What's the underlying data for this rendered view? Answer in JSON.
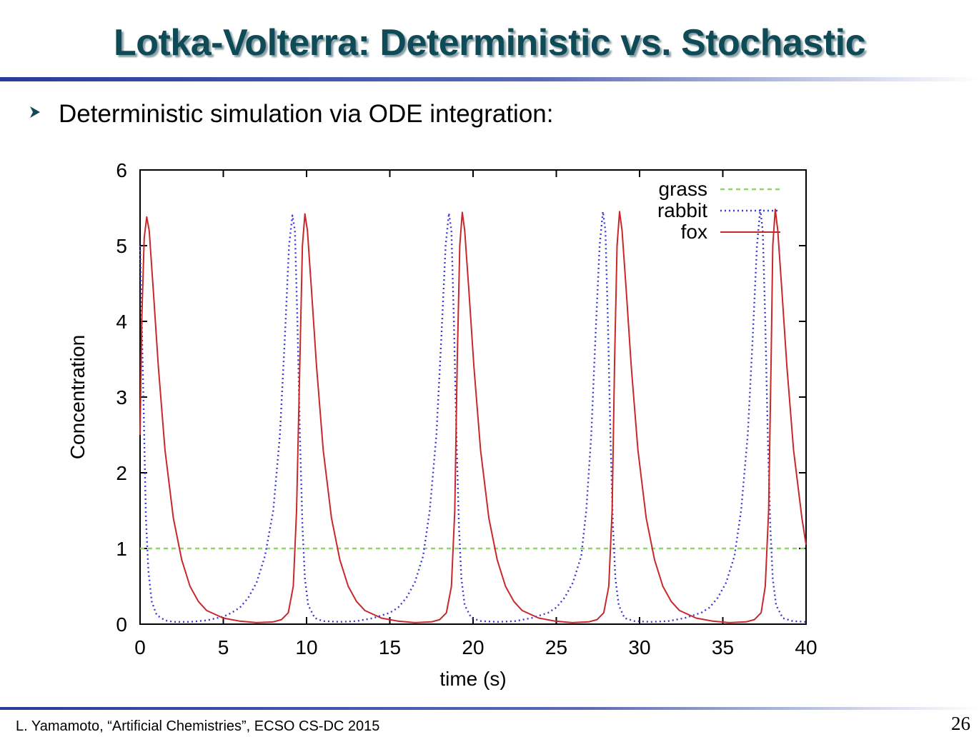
{
  "slide": {
    "title": "Lotka-Volterra: Deterministic vs. Stochastic",
    "bullet_icon": "chevron-right-icon",
    "bullet": "Deterministic simulation via ODE integration:",
    "footer": "L. Yamamoto, “Artificial Chemistries”, ECSO CS-DC 2015",
    "page_number": "26"
  },
  "chart_data": {
    "type": "line",
    "xlabel": "time (s)",
    "ylabel": "Concentration",
    "xlim": [
      0,
      40
    ],
    "ylim": [
      0,
      6
    ],
    "xticks": [
      "0",
      "5",
      "10",
      "15",
      "20",
      "25",
      "30",
      "35",
      "40"
    ],
    "yticks": [
      "0",
      "1",
      "2",
      "3",
      "4",
      "5",
      "6"
    ],
    "legend_position": "top-right",
    "grid": false,
    "series": [
      {
        "name": "grass",
        "style": "dashed",
        "color": "#8fd66a",
        "points": [
          [
            0,
            1.0
          ],
          [
            40,
            1.0
          ]
        ]
      },
      {
        "name": "rabbit",
        "style": "dotted",
        "color": "#3a3ad6",
        "points": [
          [
            0.0,
            5.0
          ],
          [
            0.2,
            3.0
          ],
          [
            0.35,
            1.4
          ],
          [
            0.5,
            0.7
          ],
          [
            0.7,
            0.3
          ],
          [
            1.0,
            0.12
          ],
          [
            1.5,
            0.05
          ],
          [
            2.0,
            0.03
          ],
          [
            3.0,
            0.03
          ],
          [
            4.0,
            0.05
          ],
          [
            5.0,
            0.1
          ],
          [
            5.5,
            0.15
          ],
          [
            6.0,
            0.22
          ],
          [
            6.5,
            0.35
          ],
          [
            7.0,
            0.55
          ],
          [
            7.5,
            0.9
          ],
          [
            8.0,
            1.5
          ],
          [
            8.4,
            2.5
          ],
          [
            8.7,
            3.8
          ],
          [
            8.95,
            5.0
          ],
          [
            9.15,
            5.4
          ],
          [
            9.3,
            5.2
          ],
          [
            9.45,
            4.0
          ],
          [
            9.6,
            2.5
          ],
          [
            9.75,
            1.3
          ],
          [
            9.9,
            0.6
          ],
          [
            10.1,
            0.25
          ],
          [
            10.5,
            0.08
          ],
          [
            11.0,
            0.04
          ],
          [
            12.0,
            0.03
          ],
          [
            13.0,
            0.04
          ],
          [
            14.0,
            0.08
          ],
          [
            15.0,
            0.15
          ],
          [
            15.5,
            0.22
          ],
          [
            16.0,
            0.35
          ],
          [
            16.5,
            0.55
          ],
          [
            17.0,
            0.9
          ],
          [
            17.4,
            1.5
          ],
          [
            17.8,
            2.5
          ],
          [
            18.1,
            3.8
          ],
          [
            18.35,
            5.0
          ],
          [
            18.55,
            5.43
          ],
          [
            18.7,
            5.2
          ],
          [
            18.85,
            4.0
          ],
          [
            19.0,
            2.5
          ],
          [
            19.15,
            1.3
          ],
          [
            19.3,
            0.6
          ],
          [
            19.5,
            0.25
          ],
          [
            19.9,
            0.08
          ],
          [
            20.5,
            0.04
          ],
          [
            21.5,
            0.03
          ],
          [
            22.5,
            0.04
          ],
          [
            23.5,
            0.08
          ],
          [
            24.5,
            0.15
          ],
          [
            25.0,
            0.22
          ],
          [
            25.5,
            0.35
          ],
          [
            26.0,
            0.55
          ],
          [
            26.5,
            0.9
          ],
          [
            26.8,
            1.5
          ],
          [
            27.1,
            2.5
          ],
          [
            27.35,
            3.8
          ],
          [
            27.6,
            5.0
          ],
          [
            27.8,
            5.45
          ],
          [
            27.95,
            5.2
          ],
          [
            28.1,
            4.0
          ],
          [
            28.25,
            2.5
          ],
          [
            28.4,
            1.3
          ],
          [
            28.55,
            0.6
          ],
          [
            28.75,
            0.25
          ],
          [
            29.1,
            0.08
          ],
          [
            29.7,
            0.04
          ],
          [
            30.7,
            0.03
          ],
          [
            31.7,
            0.04
          ],
          [
            32.7,
            0.08
          ],
          [
            33.7,
            0.15
          ],
          [
            34.2,
            0.22
          ],
          [
            34.7,
            0.35
          ],
          [
            35.2,
            0.55
          ],
          [
            35.7,
            0.9
          ],
          [
            36.1,
            1.5
          ],
          [
            36.5,
            2.5
          ],
          [
            36.8,
            3.8
          ],
          [
            37.05,
            5.0
          ],
          [
            37.25,
            5.48
          ],
          [
            37.4,
            5.2
          ],
          [
            37.55,
            4.0
          ],
          [
            37.7,
            2.5
          ],
          [
            37.85,
            1.3
          ],
          [
            38.0,
            0.6
          ],
          [
            38.2,
            0.25
          ],
          [
            38.6,
            0.08
          ],
          [
            39.2,
            0.04
          ],
          [
            40.0,
            0.03
          ]
        ]
      },
      {
        "name": "fox",
        "style": "solid",
        "color": "#c8282a",
        "points": [
          [
            0.0,
            2.5
          ],
          [
            0.1,
            4.0
          ],
          [
            0.25,
            5.1
          ],
          [
            0.4,
            5.38
          ],
          [
            0.55,
            5.2
          ],
          [
            0.8,
            4.4
          ],
          [
            1.1,
            3.4
          ],
          [
            1.5,
            2.3
          ],
          [
            2.0,
            1.4
          ],
          [
            2.5,
            0.85
          ],
          [
            3.0,
            0.5
          ],
          [
            3.5,
            0.3
          ],
          [
            4.0,
            0.18
          ],
          [
            5.0,
            0.08
          ],
          [
            6.0,
            0.04
          ],
          [
            7.0,
            0.02
          ],
          [
            8.0,
            0.03
          ],
          [
            8.5,
            0.06
          ],
          [
            8.9,
            0.15
          ],
          [
            9.2,
            0.5
          ],
          [
            9.4,
            1.5
          ],
          [
            9.6,
            3.5
          ],
          [
            9.75,
            5.0
          ],
          [
            9.9,
            5.42
          ],
          [
            10.05,
            5.2
          ],
          [
            10.3,
            4.4
          ],
          [
            10.6,
            3.4
          ],
          [
            11.0,
            2.3
          ],
          [
            11.5,
            1.4
          ],
          [
            12.0,
            0.85
          ],
          [
            12.5,
            0.5
          ],
          [
            13.0,
            0.3
          ],
          [
            13.5,
            0.18
          ],
          [
            14.5,
            0.08
          ],
          [
            15.5,
            0.04
          ],
          [
            16.5,
            0.02
          ],
          [
            17.5,
            0.03
          ],
          [
            18.0,
            0.06
          ],
          [
            18.4,
            0.15
          ],
          [
            18.7,
            0.5
          ],
          [
            18.9,
            1.5
          ],
          [
            19.05,
            3.5
          ],
          [
            19.2,
            5.0
          ],
          [
            19.35,
            5.44
          ],
          [
            19.5,
            5.2
          ],
          [
            19.75,
            4.4
          ],
          [
            20.05,
            3.4
          ],
          [
            20.45,
            2.3
          ],
          [
            20.95,
            1.4
          ],
          [
            21.45,
            0.85
          ],
          [
            21.95,
            0.5
          ],
          [
            22.45,
            0.3
          ],
          [
            22.95,
            0.18
          ],
          [
            23.95,
            0.08
          ],
          [
            24.95,
            0.04
          ],
          [
            25.95,
            0.02
          ],
          [
            26.95,
            0.03
          ],
          [
            27.45,
            0.06
          ],
          [
            27.85,
            0.15
          ],
          [
            28.15,
            0.5
          ],
          [
            28.35,
            1.5
          ],
          [
            28.5,
            3.5
          ],
          [
            28.65,
            5.0
          ],
          [
            28.8,
            5.45
          ],
          [
            28.95,
            5.2
          ],
          [
            29.2,
            4.4
          ],
          [
            29.5,
            3.4
          ],
          [
            29.9,
            2.3
          ],
          [
            30.4,
            1.4
          ],
          [
            30.9,
            0.85
          ],
          [
            31.4,
            0.5
          ],
          [
            31.9,
            0.3
          ],
          [
            32.4,
            0.18
          ],
          [
            33.4,
            0.08
          ],
          [
            34.4,
            0.04
          ],
          [
            35.4,
            0.02
          ],
          [
            36.4,
            0.03
          ],
          [
            36.9,
            0.06
          ],
          [
            37.3,
            0.15
          ],
          [
            37.55,
            0.5
          ],
          [
            37.75,
            1.5
          ],
          [
            37.9,
            3.5
          ],
          [
            38.0,
            5.0
          ],
          [
            38.15,
            5.48
          ],
          [
            38.3,
            5.2
          ],
          [
            38.55,
            4.4
          ],
          [
            38.85,
            3.4
          ],
          [
            39.25,
            2.3
          ],
          [
            39.75,
            1.4
          ],
          [
            40.0,
            1.05
          ]
        ]
      }
    ]
  }
}
